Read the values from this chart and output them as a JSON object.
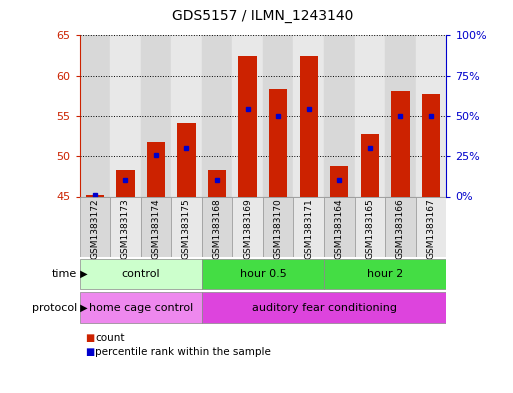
{
  "title": "GDS5157 / ILMN_1243140",
  "samples": [
    "GSM1383172",
    "GSM1383173",
    "GSM1383174",
    "GSM1383175",
    "GSM1383168",
    "GSM1383169",
    "GSM1383170",
    "GSM1383171",
    "GSM1383164",
    "GSM1383165",
    "GSM1383166",
    "GSM1383167"
  ],
  "counts": [
    45.2,
    48.3,
    51.8,
    54.1,
    48.3,
    62.4,
    58.4,
    62.5,
    48.8,
    52.8,
    58.1,
    57.7
  ],
  "percentiles": [
    1.0,
    10.0,
    26.0,
    30.0,
    10.0,
    54.0,
    50.0,
    54.0,
    10.0,
    30.0,
    50.0,
    50.0
  ],
  "y_min": 45,
  "y_max": 65,
  "y_ticks": [
    45,
    50,
    55,
    60,
    65
  ],
  "y_right_ticks": [
    0,
    25,
    50,
    75,
    100
  ],
  "y_right_labels": [
    "0%",
    "25%",
    "50%",
    "75%",
    "100%"
  ],
  "bar_color": "#cc2200",
  "marker_color": "#0000cc",
  "bar_base": 45,
  "time_groups": [
    {
      "label": "control",
      "start": 0,
      "end": 4,
      "color": "#ccffcc"
    },
    {
      "label": "hour 0.5",
      "start": 4,
      "end": 8,
      "color": "#44dd44"
    },
    {
      "label": "hour 2",
      "start": 8,
      "end": 12,
      "color": "#44dd44"
    }
  ],
  "protocol_groups": [
    {
      "label": "home cage control",
      "start": 0,
      "end": 4,
      "color": "#ee88ee"
    },
    {
      "label": "auditory fear conditioning",
      "start": 4,
      "end": 12,
      "color": "#dd44dd"
    }
  ],
  "legend_items": [
    {
      "label": "count",
      "color": "#cc2200"
    },
    {
      "label": "percentile rank within the sample",
      "color": "#0000cc"
    }
  ],
  "grid_color": "#000000",
  "bg_color": "#ffffff",
  "left_axis_color": "#cc2200",
  "right_axis_color": "#0000cc",
  "bar_width": 0.6,
  "col_colors": [
    "#d8d8d8",
    "#e8e8e8"
  ],
  "time_label": "time",
  "protocol_label": "protocol"
}
